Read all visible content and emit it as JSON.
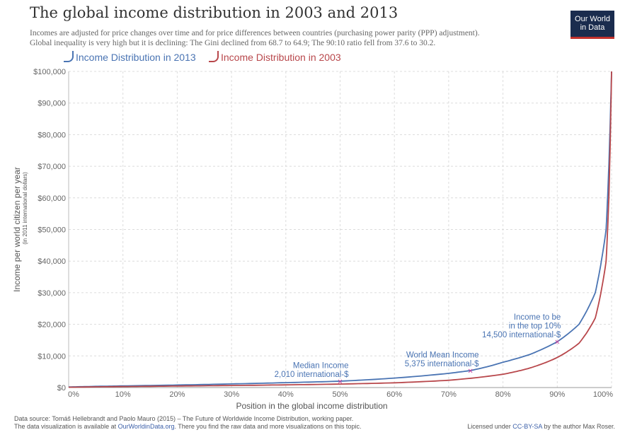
{
  "header": {
    "title": "The global income distribution in 2003 and 2013",
    "subtitle_line1": "Incomes are adjusted for price changes over time and for price differences between countries (purchasing power parity (PPP) adjustment).",
    "subtitle_line2": "Global inequality is very high but it is declining: The Gini declined from 68.7 to 64.9; The 90:10 ratio fell from 37.6 to 30.2."
  },
  "logo": {
    "line1": "Our World",
    "line2": "in Data"
  },
  "colors": {
    "series2013": "#4a74b3",
    "series2003": "#b8474b",
    "marker": "#cc3399",
    "grid": "#dcdcdc"
  },
  "chart_data": {
    "type": "line",
    "title": "The global income distribution in 2003 and 2013",
    "xlabel": "Position in the global income distribution",
    "ylabel": "Income per world citizen per year",
    "ylabel_sub": "(in 2011 international dollars)",
    "xlim": [
      0,
      100
    ],
    "ylim": [
      0,
      100000
    ],
    "x_ticks": [
      0,
      10,
      20,
      30,
      40,
      50,
      60,
      70,
      80,
      90,
      100
    ],
    "x_tick_labels": [
      "0%",
      "10%",
      "20%",
      "30%",
      "40%",
      "50%",
      "60%",
      "70%",
      "80%",
      "90%",
      "100%"
    ],
    "y_ticks": [
      0,
      10000,
      20000,
      30000,
      40000,
      50000,
      60000,
      70000,
      80000,
      90000,
      100000
    ],
    "y_tick_labels": [
      "$0",
      "$10,000",
      "$20,000",
      "$30,000",
      "$40,000",
      "$50,000",
      "$60,000",
      "$70,000",
      "$80,000",
      "$90,000",
      "$100,000"
    ],
    "grid": true,
    "legend_position": "top-left",
    "series": [
      {
        "name": "Income Distribution in 2013",
        "x": [
          0,
          5,
          10,
          20,
          30,
          40,
          50,
          60,
          70,
          74,
          80,
          85,
          90,
          94,
          97,
          99,
          99.5,
          100
        ],
        "y": [
          200,
          380,
          520,
          800,
          1150,
          1550,
          2010,
          3000,
          4500,
          5375,
          8000,
          10500,
          14500,
          20000,
          30000,
          50000,
          70000,
          100000
        ]
      },
      {
        "name": "Income Distribution in 2003",
        "x": [
          0,
          5,
          10,
          20,
          30,
          40,
          50,
          60,
          70,
          80,
          85,
          90,
          94,
          97,
          99,
          99.5,
          100
        ],
        "y": [
          100,
          220,
          310,
          480,
          650,
          850,
          1100,
          1500,
          2300,
          4200,
          6200,
          9500,
          14000,
          22000,
          40000,
          60000,
          100000
        ]
      }
    ],
    "annotations": [
      {
        "x": 50,
        "y": 2010,
        "line1": "Median Income",
        "line2": "2,010 international-$"
      },
      {
        "x": 74,
        "y": 5375,
        "line1": "World Mean Income",
        "line2": "5,375 international-$"
      },
      {
        "x": 90,
        "y": 14500,
        "line1": "Income to be",
        "line2": "in the top 10%",
        "line3": "14,500 international-$"
      }
    ]
  },
  "footer": {
    "source": "Data source: Tomáš Hellebrandt and Paolo Mauro (2015) – The Future of Worldwide Income Distribution, working paper.",
    "viz_prefix": "The data visualization is available at ",
    "viz_link": "OurWorldinData.org",
    "viz_suffix": ". There you find the raw data and more visualizations on this topic.",
    "license_prefix": "Licensed under ",
    "license_link": "CC-BY-SA",
    "license_suffix": " by the author Max Roser."
  }
}
